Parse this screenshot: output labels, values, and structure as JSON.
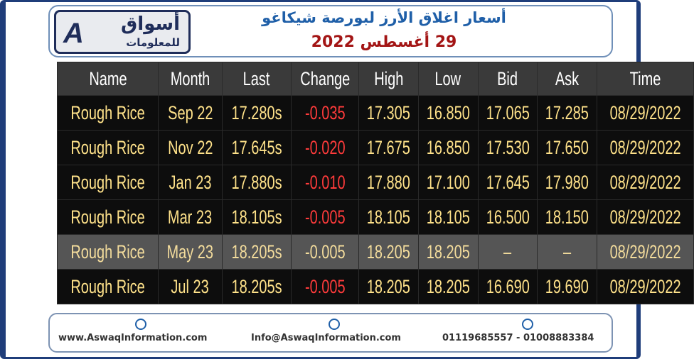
{
  "header": {
    "logo_top": "أسواق",
    "logo_bottom": "للمعلومات",
    "title": "أسعار اغلاق الأرز لبورصة شيكاغو",
    "date": "29 أغسطس 2022"
  },
  "table": {
    "columns": [
      "Name",
      "Month",
      "Last",
      "Change",
      "High",
      "Low",
      "Bid",
      "Ask",
      "Time"
    ],
    "rows": [
      [
        "Rough Rice",
        "Sep 22",
        "17.280s",
        "-0.035",
        "17.305",
        "16.850",
        "17.065",
        "17.285",
        "08/29/2022"
      ],
      [
        "Rough Rice",
        "Nov 22",
        "17.645s",
        "-0.020",
        "17.675",
        "16.850",
        "17.530",
        "17.650",
        "08/29/2022"
      ],
      [
        "Rough Rice",
        "Jan 23",
        "17.880s",
        "-0.010",
        "17.880",
        "17.100",
        "17.645",
        "17.980",
        "08/29/2022"
      ],
      [
        "Rough Rice",
        "Mar 23",
        "18.105s",
        "-0.005",
        "18.105",
        "18.105",
        "16.500",
        "18.150",
        "08/29/2022"
      ],
      [
        "Rough Rice",
        "May 23",
        "18.205s",
        "-0.005",
        "18.205",
        "18.205",
        "–",
        "–",
        "08/29/2022"
      ],
      [
        "Rough Rice",
        "Jul 23",
        "18.205s",
        "-0.005",
        "18.205",
        "18.205",
        "16.690",
        "19.690",
        "08/29/2022"
      ]
    ]
  },
  "footer": {
    "website": "www.AswaqInformation.com",
    "email": "Info@AswaqInformation.com",
    "phones": "01119685557 - 01008883384"
  }
}
